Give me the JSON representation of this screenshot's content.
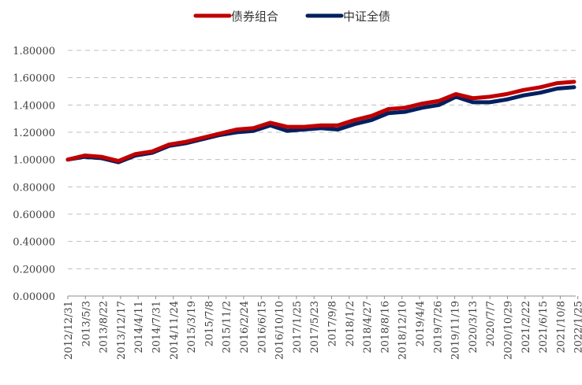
{
  "chart_data": {
    "type": "line",
    "title": "",
    "xlabel": "",
    "ylabel": "",
    "ylim": [
      0,
      1.8
    ],
    "grid": {
      "y": true,
      "style": "dashed",
      "x": false
    },
    "legend": {
      "placement": "top-center"
    },
    "yticks": [
      "0.00000",
      "0.20000",
      "0.40000",
      "0.60000",
      "0.80000",
      "1.00000",
      "1.20000",
      "1.40000",
      "1.60000",
      "1.80000"
    ],
    "xticks": [
      "2012/12/31",
      "2013/5/3",
      "2013/8/22",
      "2013/12/17",
      "2014/4/11",
      "2014/7/31",
      "2014/11/24",
      "2015/3/19",
      "2015/7/8",
      "2015/11/2",
      "2016/2/24",
      "2016/6/15",
      "2016/10/10",
      "2017/1/25",
      "2017/5/23",
      "2017/9/8",
      "2018/1/2",
      "2018/4/27",
      "2018/8/16",
      "2018/12/10",
      "2019/4/4",
      "2019/7/26",
      "2019/11/19",
      "2020/3/13",
      "2020/7/7",
      "2020/10/29",
      "2021/2/22",
      "2021/6/15",
      "2021/10/8",
      "2022/1/25"
    ],
    "series": [
      {
        "name": "债券组合",
        "color": "#C00000",
        "values": [
          1.0,
          1.03,
          1.02,
          0.99,
          1.04,
          1.06,
          1.11,
          1.13,
          1.16,
          1.19,
          1.22,
          1.23,
          1.27,
          1.24,
          1.24,
          1.25,
          1.25,
          1.29,
          1.32,
          1.37,
          1.38,
          1.41,
          1.43,
          1.48,
          1.45,
          1.46,
          1.48,
          1.51,
          1.53,
          1.56,
          1.57
        ]
      },
      {
        "name": "中证全债",
        "color": "#002060",
        "values": [
          1.0,
          1.02,
          1.01,
          0.98,
          1.03,
          1.05,
          1.1,
          1.12,
          1.15,
          1.18,
          1.2,
          1.21,
          1.25,
          1.21,
          1.22,
          1.23,
          1.22,
          1.26,
          1.29,
          1.34,
          1.35,
          1.38,
          1.4,
          1.46,
          1.42,
          1.42,
          1.44,
          1.47,
          1.49,
          1.52,
          1.53
        ]
      }
    ]
  }
}
